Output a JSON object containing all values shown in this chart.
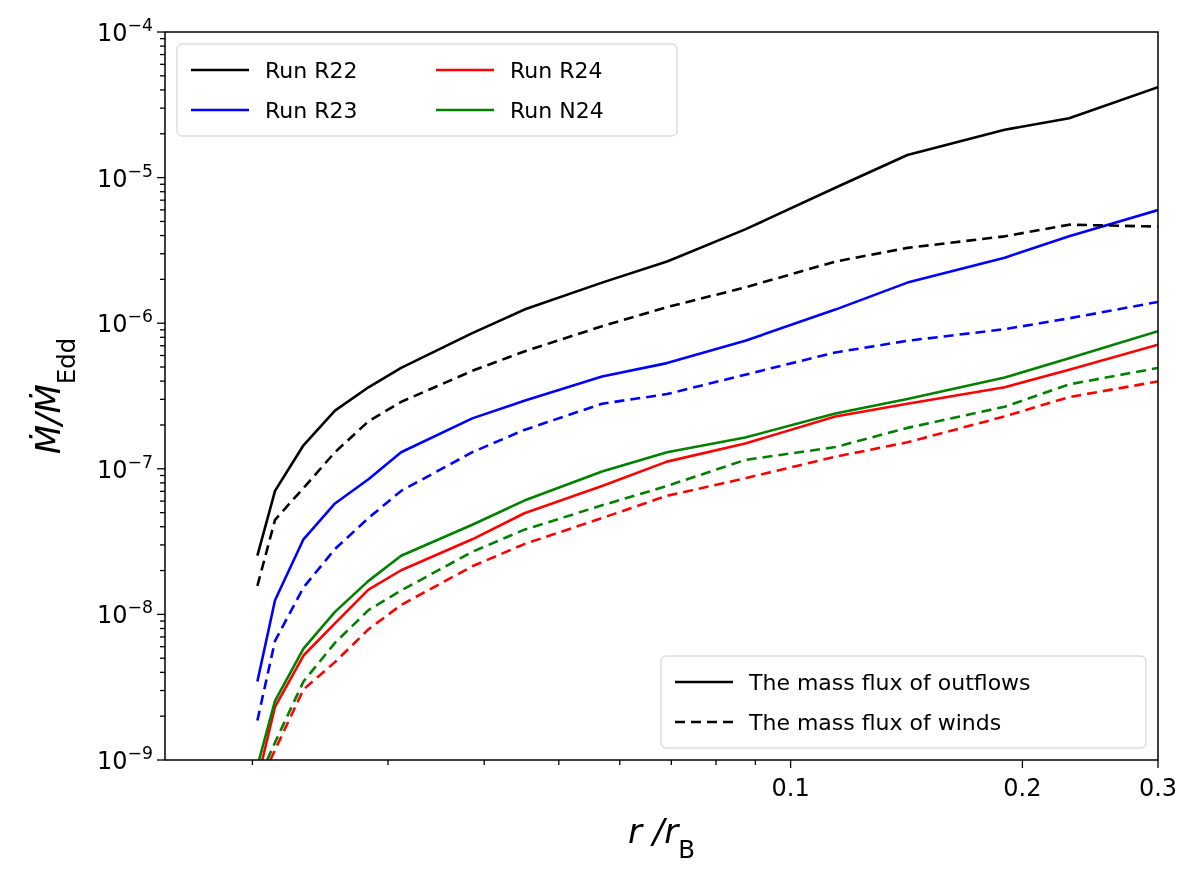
{
  "chart_data": {
    "type": "line",
    "xlabel": "r /r$_{B}$",
    "ylabel": "Ṁ/Ṁ$_{Edd}$",
    "log": "xy",
    "xlim": [
      0.0154,
      0.3
    ],
    "ylim": [
      1e-09,
      0.0001
    ],
    "xticks": [
      {
        "value": 0.02,
        "label": null
      },
      {
        "value": 0.03,
        "label": null
      },
      {
        "value": 0.04,
        "label": null
      },
      {
        "value": 0.05,
        "label": null
      },
      {
        "value": 0.06,
        "label": null
      },
      {
        "value": 0.07,
        "label": null
      },
      {
        "value": 0.08,
        "label": null
      },
      {
        "value": 0.09,
        "label": null
      },
      0.1,
      0.2,
      0.3
    ],
    "yticks": [
      {
        "value": 1e-09,
        "label": "10$^{−9}$"
      },
      {
        "value": 2e-09,
        "label": null
      },
      {
        "value": 3e-09,
        "label": null
      },
      {
        "value": 4e-09,
        "label": null
      },
      {
        "value": 5e-09,
        "label": null
      },
      {
        "value": 6e-09,
        "label": null
      },
      {
        "value": 7e-09,
        "label": null
      },
      {
        "value": 8e-09,
        "label": null
      },
      {
        "value": 9e-09,
        "label": null
      },
      {
        "value": 1e-08,
        "label": "10$^{−8}$"
      },
      {
        "value": 2e-08,
        "label": null
      },
      {
        "value": 3e-08,
        "label": null
      },
      {
        "value": 4e-08,
        "label": null
      },
      {
        "value": 5e-08,
        "label": null
      },
      {
        "value": 6e-08,
        "label": null
      },
      {
        "value": 7e-08,
        "label": null
      },
      {
        "value": 8e-08,
        "label": null
      },
      {
        "value": 9e-08,
        "label": null
      },
      {
        "value": 1e-07,
        "label": "10$^{−7}$"
      },
      {
        "value": 2e-07,
        "label": null
      },
      {
        "value": 3e-07,
        "label": null
      },
      {
        "value": 4e-07,
        "label": null
      },
      {
        "value": 5e-07,
        "label": null
      },
      {
        "value": 6e-07,
        "label": null
      },
      {
        "value": 7e-07,
        "label": null
      },
      {
        "value": 8e-07,
        "label": null
      },
      {
        "value": 9e-07,
        "label": null
      },
      {
        "value": 1e-06,
        "label": "10$^{−6}$"
      },
      {
        "value": 2e-06,
        "label": null
      },
      {
        "value": 3e-06,
        "label": null
      },
      {
        "value": 4e-06,
        "label": null
      },
      {
        "value": 5e-06,
        "label": null
      },
      {
        "value": 6e-06,
        "label": null
      },
      {
        "value": 7e-06,
        "label": null
      },
      {
        "value": 8e-06,
        "label": null
      },
      {
        "value": 9e-06,
        "label": null
      },
      {
        "value": 1e-05,
        "label": "10$^{−5}$"
      },
      {
        "value": 2e-05,
        "label": null
      },
      {
        "value": 3e-05,
        "label": null
      },
      {
        "value": 4e-05,
        "label": null
      },
      {
        "value": 5e-05,
        "label": null
      },
      {
        "value": 6e-05,
        "label": null
      },
      {
        "value": 7e-05,
        "label": null
      },
      {
        "value": 8e-05,
        "label": null
      },
      {
        "value": 9e-05,
        "label": null
      },
      {
        "value": 0.0001,
        "label": "10$^{−4}$"
      }
    ],
    "legend": "top left",
    "grid": false,
    "annotations": [
      "The mass flux of outflows",
      "The mass flux of winds"
    ],
    "series": [
      {
        "name": "Run R22",
        "color": "#000000",
        "line_style": "solid",
        "x": [
          0.0203,
          0.0214,
          0.0233,
          0.0256,
          0.0283,
          0.0312,
          0.0386,
          0.0451,
          0.0569,
          0.0691,
          0.0873,
          0.1143,
          0.1418,
          0.1897,
          0.23,
          0.3
        ],
        "values": [
          2.53e-08,
          7.05e-08,
          1.45e-07,
          2.51e-07,
          3.63e-07,
          4.93e-07,
          8.55e-07,
          1.24e-06,
          1.9e-06,
          2.65e-06,
          4.41e-06,
          8.51e-06,
          1.43e-05,
          2.13e-05,
          2.56e-05,
          4.18e-05
        ]
      },
      {
        "name": "Run R23",
        "color": "#0000ff",
        "line_style": "solid",
        "x": [
          0.0203,
          0.0214,
          0.0233,
          0.0256,
          0.0283,
          0.0312,
          0.0386,
          0.0451,
          0.0569,
          0.0691,
          0.0873,
          0.1143,
          0.1418,
          0.1897,
          0.23,
          0.3
        ],
        "values": [
          3.46e-09,
          1.25e-08,
          3.28e-08,
          5.78e-08,
          8.47e-08,
          1.3e-07,
          2.22e-07,
          2.93e-07,
          4.3e-07,
          5.32e-07,
          7.57e-07,
          1.24e-06,
          1.9e-06,
          2.82e-06,
          3.95e-06,
          5.98e-06
        ]
      },
      {
        "name": "Run R24",
        "color": "#ff0000",
        "line_style": "solid",
        "x": [
          0.0206,
          0.0214,
          0.0233,
          0.0256,
          0.0283,
          0.0312,
          0.0386,
          0.0451,
          0.0569,
          0.0691,
          0.0873,
          0.1143,
          0.1418,
          0.1897,
          0.23,
          0.3
        ],
        "values": [
          1e-09,
          2.32e-09,
          5.22e-09,
          8.67e-09,
          1.48e-08,
          2.01e-08,
          3.28e-08,
          4.95e-08,
          7.62e-08,
          1.12e-07,
          1.49e-07,
          2.29e-07,
          2.8e-07,
          3.63e-07,
          4.79e-07,
          7.12e-07
        ]
      },
      {
        "name": "Run N24",
        "color": "#008000",
        "line_style": "solid",
        "x": [
          0.0204,
          0.0214,
          0.0233,
          0.0256,
          0.0283,
          0.0312,
          0.0386,
          0.0451,
          0.0569,
          0.0691,
          0.0873,
          0.1143,
          0.1418,
          0.1897,
          0.23,
          0.3
        ],
        "values": [
          1e-09,
          2.55e-09,
          5.82e-09,
          1.04e-08,
          1.7e-08,
          2.53e-08,
          4.13e-08,
          6.05e-08,
          9.57e-08,
          1.3e-07,
          1.64e-07,
          2.4e-07,
          3.02e-07,
          4.23e-07,
          5.74e-07,
          8.81e-07
        ]
      },
      {
        "color": "#000000",
        "line_style": "dashed",
        "x": [
          0.0203,
          0.0214,
          0.0233,
          0.0256,
          0.0283,
          0.0312,
          0.0386,
          0.0451,
          0.0569,
          0.0691,
          0.0873,
          0.1143,
          0.1418,
          0.1897,
          0.23,
          0.3
        ],
        "values": [
          1.57e-08,
          4.46e-08,
          7.38e-08,
          1.3e-07,
          2.12e-07,
          2.88e-07,
          4.71e-07,
          6.4e-07,
          9.53e-07,
          1.29e-06,
          1.76e-06,
          2.65e-06,
          3.29e-06,
          3.95e-06,
          4.75e-06,
          4.61e-06
        ]
      },
      {
        "color": "#0000ff",
        "line_style": "dashed",
        "x": [
          0.0203,
          0.0214,
          0.0233,
          0.0256,
          0.0283,
          0.0312,
          0.0386,
          0.0451,
          0.0569,
          0.0691,
          0.0873,
          0.1143,
          0.1418,
          0.1897,
          0.23,
          0.3
        ],
        "values": [
          1.87e-09,
          6.58e-09,
          1.53e-08,
          2.81e-08,
          4.59e-08,
          7.05e-08,
          1.3e-07,
          1.85e-07,
          2.8e-07,
          3.26e-07,
          4.43e-07,
          6.3e-07,
          7.57e-07,
          9.1e-07,
          1.08e-06,
          1.4e-06
        ]
      },
      {
        "color": "#ff0000",
        "line_style": "dashed",
        "x": [
          0.0211,
          0.0233,
          0.0256,
          0.0283,
          0.0312,
          0.0386,
          0.0451,
          0.0569,
          0.0691,
          0.0873,
          0.1143,
          0.1418,
          0.1897,
          0.23,
          0.3
        ],
        "values": [
          1e-09,
          3.05e-09,
          4.7e-09,
          7.91e-09,
          1.16e-08,
          2.14e-08,
          3.04e-08,
          4.59e-08,
          6.53e-08,
          8.61e-08,
          1.21e-07,
          1.52e-07,
          2.29e-07,
          3.11e-07,
          3.98e-07
        ]
      },
      {
        "color": "#008000",
        "line_style": "dashed",
        "x": [
          0.0209,
          0.0214,
          0.0233,
          0.0256,
          0.0283,
          0.0312,
          0.0386,
          0.0451,
          0.0569,
          0.0691,
          0.0873,
          0.1143,
          0.1418,
          0.1897,
          0.23,
          0.3
        ],
        "values": [
          1e-09,
          1.32e-09,
          3.46e-09,
          6.38e-09,
          1.07e-08,
          1.46e-08,
          2.69e-08,
          3.82e-08,
          5.61e-08,
          7.62e-08,
          1.15e-07,
          1.41e-07,
          1.91e-07,
          2.67e-07,
          3.8e-07,
          4.93e-07
        ]
      }
    ]
  }
}
